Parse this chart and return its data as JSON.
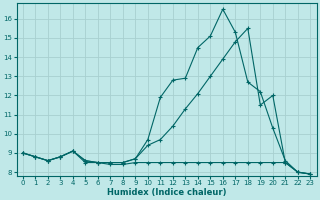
{
  "xlabel": "Humidex (Indice chaleur)",
  "bg_color": "#c0e8e8",
  "grid_color": "#a8d0d0",
  "line_color": "#006666",
  "xlim": [
    -0.5,
    23.5
  ],
  "ylim": [
    7.8,
    16.8
  ],
  "xticks": [
    0,
    1,
    2,
    3,
    4,
    5,
    6,
    7,
    8,
    9,
    10,
    11,
    12,
    13,
    14,
    15,
    16,
    17,
    18,
    19,
    20,
    21,
    22,
    23
  ],
  "yticks": [
    8,
    9,
    10,
    11,
    12,
    13,
    14,
    15,
    16
  ],
  "line1_x": [
    0,
    1,
    2,
    3,
    4,
    5,
    6,
    7,
    8,
    9,
    10,
    11,
    12,
    13,
    14,
    15,
    16,
    17,
    18,
    19,
    20,
    21,
    22,
    23
  ],
  "line1_y": [
    9.0,
    8.8,
    8.6,
    8.8,
    9.1,
    8.6,
    8.5,
    8.5,
    8.5,
    8.7,
    9.7,
    11.9,
    12.8,
    12.9,
    14.5,
    15.1,
    16.5,
    15.3,
    12.7,
    12.2,
    10.3,
    8.6,
    8.0,
    7.9
  ],
  "line2_x": [
    0,
    1,
    2,
    3,
    4,
    5,
    6,
    7,
    8,
    9,
    10,
    11,
    12,
    13,
    14,
    15,
    16,
    17,
    18,
    19,
    20,
    21,
    22,
    23
  ],
  "line2_y": [
    9.0,
    8.8,
    8.6,
    8.8,
    9.1,
    8.6,
    8.5,
    8.5,
    8.5,
    8.7,
    9.4,
    9.7,
    10.4,
    11.3,
    12.1,
    13.0,
    13.9,
    14.8,
    15.5,
    11.5,
    12.0,
    8.5,
    8.0,
    7.9
  ],
  "line3_x": [
    0,
    1,
    2,
    3,
    4,
    5,
    6,
    7,
    8,
    9,
    10,
    11,
    12,
    13,
    14,
    15,
    16,
    17,
    18,
    19,
    20,
    21,
    22,
    23
  ],
  "line3_y": [
    9.0,
    8.8,
    8.6,
    8.8,
    9.1,
    8.5,
    8.5,
    8.4,
    8.4,
    8.5,
    8.5,
    8.5,
    8.5,
    8.5,
    8.5,
    8.5,
    8.5,
    8.5,
    8.5,
    8.5,
    8.5,
    8.5,
    8.0,
    7.9
  ],
  "marker": "+",
  "marker_size": 3.5
}
